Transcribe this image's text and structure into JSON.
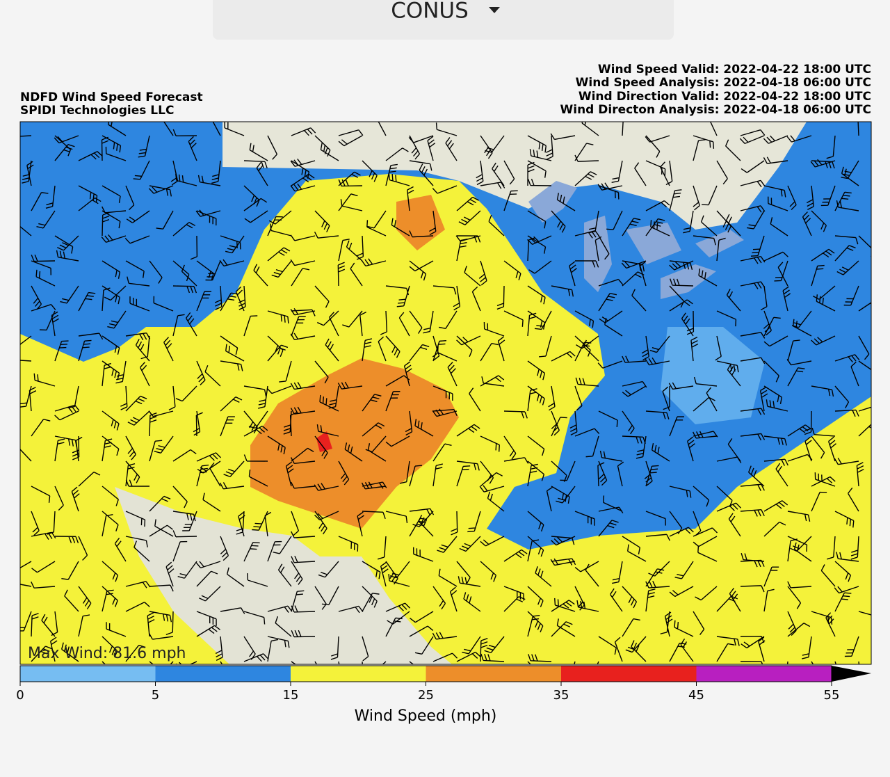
{
  "dropdown": {
    "selected": "CONUS"
  },
  "map": {
    "title_lines": [
      "NDFD Wind Speed Forecast",
      "SPIDI Technologies LLC"
    ],
    "valid_lines": [
      "Wind Speed Valid: 2022-04-22 18:00 UTC",
      "Wind Speed Analysis: 2022-04-18 06:00 UTC",
      "Wind Direction Valid: 2022-04-22 18:00 UTC",
      "Wind Directon Analysis: 2022-04-18 06:00 UTC"
    ],
    "max_wind": "Max Wind: 81.6 mph"
  },
  "colorbar": {
    "bounds": [
      0,
      5,
      15,
      25,
      35,
      45,
      55
    ],
    "colors": [
      "#76bdf2",
      "#2e86e0",
      "#f4f23a",
      "#ed8e2a",
      "#e8211e",
      "#b81fc0"
    ],
    "label": "Wind Speed (mph)"
  }
}
